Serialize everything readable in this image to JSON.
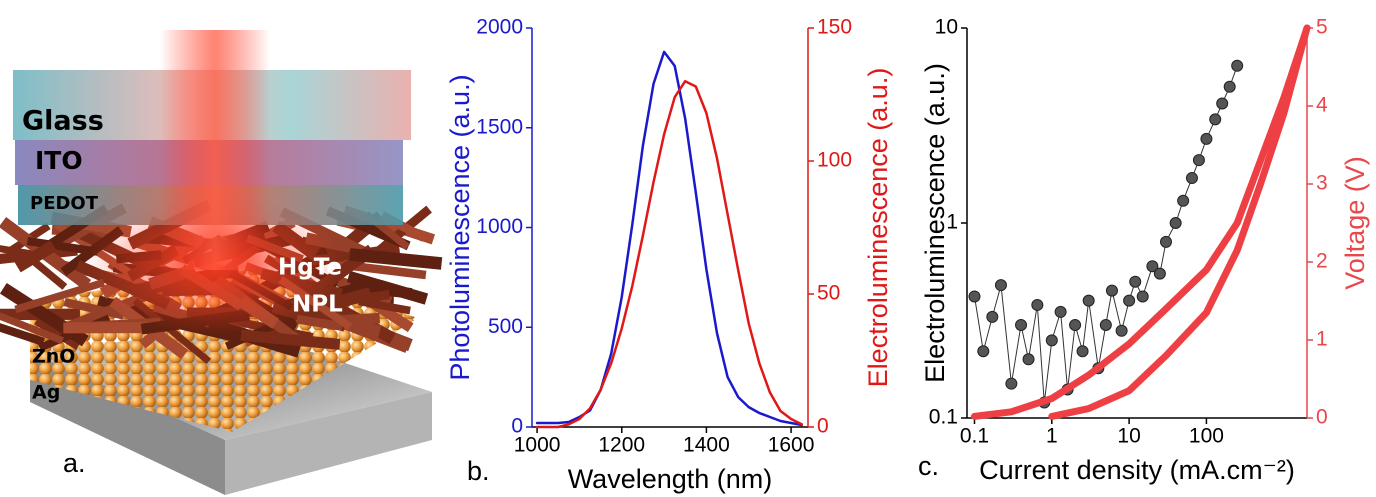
{
  "illustration": {
    "layers": [
      "Glass",
      "ITO",
      "PEDOT",
      "ZnO",
      "Ag"
    ],
    "npl": [
      "HgTe",
      "NPL"
    ]
  },
  "panel_labels": [
    "a.",
    "b.",
    "c."
  ],
  "chart_data": [
    {
      "type": "line",
      "xlabel": "Wavelength (nm)",
      "ylabel": "Photoluminescence (a.u.)",
      "y2label": "Electroluminescence (a.u.)",
      "x": [
        1000,
        1025,
        1050,
        1075,
        1100,
        1125,
        1150,
        1175,
        1200,
        1225,
        1250,
        1275,
        1300,
        1325,
        1350,
        1375,
        1400,
        1425,
        1450,
        1475,
        1500,
        1525,
        1550,
        1575,
        1600,
        1625
      ],
      "xlim": [
        988,
        1640
      ],
      "xticks": [
        1000,
        1200,
        1400,
        1600
      ],
      "ylim": [
        0,
        2000
      ],
      "yticks": [
        0,
        500,
        1000,
        1500,
        2000
      ],
      "y2lim": [
        0,
        150
      ],
      "y2ticks": [
        0,
        50,
        100,
        150
      ],
      "ycolor": "#1a1acc",
      "y2color": "#e01818",
      "series": [
        {
          "color": "#1a1acc",
          "values": [
            20,
            20,
            20,
            25,
            50,
            83,
            185,
            368,
            650,
            1015,
            1410,
            1720,
            1880,
            1810,
            1545,
            1175,
            790,
            470,
            250,
            150,
            100,
            70,
            50,
            30,
            20,
            10
          ]
        },
        {
          "color": "#e01818",
          "axis": "y2",
          "values": [
            0,
            0,
            0,
            1,
            3,
            7,
            14,
            24,
            37,
            53,
            72,
            92,
            110,
            124,
            130,
            128,
            118,
            101,
            80,
            59,
            39,
            24,
            13,
            6,
            3,
            1
          ]
        }
      ]
    },
    {
      "type": "scatter",
      "xlabel": "Current density (mA.cm⁻²)",
      "ylabel": "Electroluminescence (a.u.)",
      "y2label": "Voltage (V)",
      "xlog": true,
      "ylog": true,
      "xlim": [
        0.08,
        2000
      ],
      "xticks": [
        0.1,
        1,
        10,
        100
      ],
      "ylim": [
        0.1,
        10
      ],
      "yticks": [
        0.1,
        1,
        10
      ],
      "y2lim": [
        0,
        5
      ],
      "y2ticks": [
        0,
        1,
        2,
        3,
        4,
        5
      ],
      "ycolor": "#000000",
      "y2color": "#e8474c",
      "series": [
        {
          "color": "#555555",
          "marker": "circle",
          "x": [
            0.1,
            0.13,
            0.17,
            0.22,
            0.3,
            0.4,
            0.5,
            0.65,
            0.8,
            1,
            1.3,
            1.6,
            2,
            2.5,
            3,
            4,
            5,
            6,
            8,
            10,
            12,
            15,
            20,
            25,
            30,
            40,
            50,
            65,
            80,
            100,
            130,
            160,
            200,
            250
          ],
          "values": [
            0.42,
            0.22,
            0.33,
            0.48,
            0.15,
            0.3,
            0.2,
            0.38,
            0.12,
            0.25,
            0.35,
            0.14,
            0.3,
            0.22,
            0.4,
            0.18,
            0.3,
            0.45,
            0.28,
            0.4,
            0.5,
            0.42,
            0.6,
            0.55,
            0.8,
            1.0,
            1.3,
            1.7,
            2.1,
            2.7,
            3.4,
            4.1,
            5.0,
            6.4
          ]
        },
        {
          "color": "#ee4044",
          "axis": "y2",
          "x": [
            0.1,
            0.3,
            1,
            3,
            10,
            30,
            100,
            250,
            500,
            1000,
            2000
          ],
          "values": [
            0.02,
            0.08,
            0.25,
            0.55,
            0.95,
            1.4,
            1.9,
            2.5,
            3.3,
            4.1,
            5
          ]
        },
        {
          "color": "#ee4044",
          "axis": "y2",
          "x": [
            1,
            3,
            10,
            30,
            100,
            250,
            500,
            1000,
            2000
          ],
          "values": [
            0.02,
            0.12,
            0.35,
            0.8,
            1.35,
            2.15,
            3.0,
            3.9,
            5
          ]
        }
      ]
    }
  ]
}
